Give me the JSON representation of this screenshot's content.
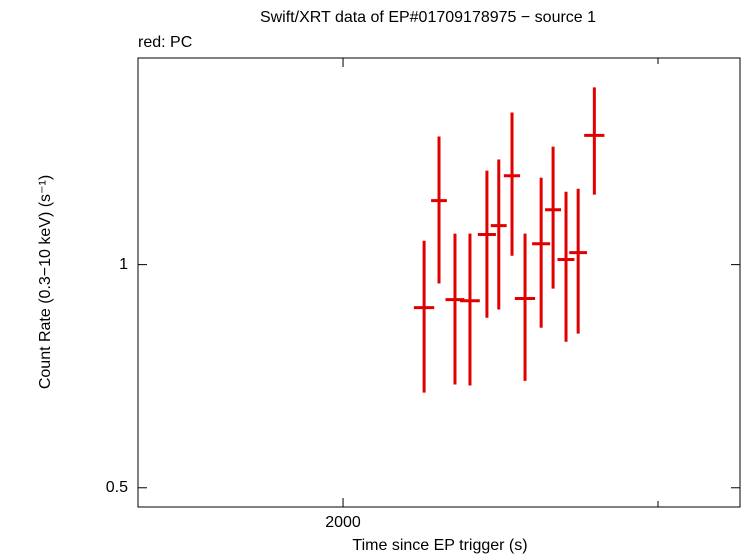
{
  "chart_data": {
    "type": "errorbar",
    "title": "Swift/XRT data of EP#01709178975 − source 1",
    "xlabel": "Time since EP trigger (s)",
    "ylabel": "Count Rate (0.3−10 keV) (s⁻¹)",
    "xlog": true,
    "ylog": true,
    "xlim": [
      1536,
      3334
    ],
    "ylim": [
      0.471,
      1.9
    ],
    "xticks": [
      2000
    ],
    "xticks_minor": [
      3000
    ],
    "yticks": [
      0.5,
      1
    ],
    "series": [
      {
        "name": "red: PC",
        "color": "#e00000",
        "x": [
          2220,
          2263,
          2310,
          2355,
          2407,
          2444,
          2486,
          2528,
          2581,
          2621,
          2665,
          2707,
          2764
        ],
        "xerr": [
          29,
          23,
          28,
          30,
          28,
          25,
          26,
          33,
          30,
          27,
          29,
          31,
          36
        ],
        "values": [
          0.875,
          1.22,
          0.897,
          0.894,
          1.098,
          1.129,
          1.318,
          0.9,
          1.067,
          1.186,
          1.016,
          1.038,
          1.494
        ],
        "yhigh": [
          1.077,
          1.489,
          1.101,
          1.101,
          1.339,
          1.386,
          1.604,
          1.101,
          1.31,
          1.443,
          1.254,
          1.266,
          1.734
        ],
        "ylow": [
          0.672,
          0.943,
          0.689,
          0.687,
          0.848,
          0.87,
          1.028,
          0.697,
          0.822,
          0.928,
          0.787,
          0.807,
          1.243
        ]
      }
    ]
  }
}
